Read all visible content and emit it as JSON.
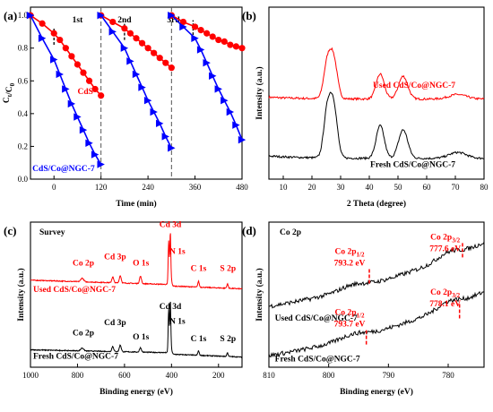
{
  "chart_data": [
    {
      "id": "a",
      "panel_label": "(a)",
      "type": "line",
      "xlabel": "Time (min)",
      "ylabel_main": "C",
      "ylabel_sub1": "t",
      "ylabel_mid": "/C",
      "ylabel_sub2": "0",
      "xlim": [
        -60,
        480
      ],
      "ylim": [
        0,
        1.05
      ],
      "xticks": [
        0,
        120,
        240,
        360,
        480
      ],
      "yticks": [
        0.0,
        0.2,
        0.4,
        0.6,
        0.8,
        1.0
      ],
      "cycle_labels": [
        {
          "text": "1st",
          "x": 60
        },
        {
          "text": "2nd",
          "x": 180
        },
        {
          "text": "3rd",
          "x": 305
        }
      ],
      "cycle_dividers": [
        120,
        300
      ],
      "light_on_markers": [
        {
          "x": 0,
          "y0": 0.82,
          "y1": 0.92
        },
        {
          "x": 180,
          "y0": 0.85,
          "y1": 0.95
        },
        {
          "x": 355,
          "y0": 0.88,
          "y1": 0.97
        }
      ],
      "series": [
        {
          "name": "CdS",
          "color": "#ff0000",
          "marker": "circle",
          "label_at": [
            100,
            0.52
          ],
          "segments": [
            {
              "x": [
                -60,
                -30,
                0,
                15,
                30,
                45,
                60,
                75,
                90,
                105,
                120
              ],
              "y": [
                1.0,
                0.95,
                0.89,
                0.85,
                0.8,
                0.75,
                0.7,
                0.65,
                0.6,
                0.55,
                0.51
              ]
            },
            {
              "x": [
                120,
                150,
                180,
                195,
                210,
                225,
                240,
                255,
                270,
                285,
                300
              ],
              "y": [
                1.0,
                0.96,
                0.92,
                0.89,
                0.86,
                0.83,
                0.8,
                0.77,
                0.74,
                0.71,
                0.68
              ]
            },
            {
              "x": [
                300,
                330,
                360,
                375,
                390,
                405,
                420,
                435,
                450,
                465,
                480
              ],
              "y": [
                1.0,
                0.96,
                0.93,
                0.91,
                0.89,
                0.87,
                0.85,
                0.84,
                0.82,
                0.81,
                0.8
              ]
            }
          ]
        },
        {
          "name": "CdS/Co@NGC-7",
          "color": "#0000ff",
          "marker": "triangle",
          "label_at": [
            -55,
            0.05
          ],
          "segments": [
            {
              "x": [
                -60,
                -30,
                0,
                15,
                30,
                45,
                60,
                75,
                90,
                105,
                120
              ],
              "y": [
                1.0,
                0.86,
                0.73,
                0.64,
                0.55,
                0.46,
                0.38,
                0.3,
                0.22,
                0.15,
                0.09
              ]
            },
            {
              "x": [
                120,
                150,
                180,
                195,
                210,
                225,
                240,
                255,
                270,
                285,
                300
              ],
              "y": [
                1.0,
                0.9,
                0.8,
                0.72,
                0.64,
                0.56,
                0.48,
                0.41,
                0.34,
                0.26,
                0.19
              ]
            },
            {
              "x": [
                300,
                330,
                360,
                375,
                390,
                405,
                420,
                435,
                450,
                465,
                480
              ],
              "y": [
                1.0,
                0.93,
                0.86,
                0.79,
                0.71,
                0.63,
                0.55,
                0.48,
                0.41,
                0.33,
                0.24
              ]
            }
          ]
        }
      ]
    },
    {
      "id": "b",
      "panel_label": "(b)",
      "type": "line",
      "xlabel": "2 Theta (degree)",
      "ylabel": "Intensity (a.u.)",
      "xlim": [
        5,
        80
      ],
      "xticks": [
        10,
        20,
        30,
        40,
        50,
        60,
        70,
        80
      ],
      "series": [
        {
          "name": "Used CdS/Co@NGC-7",
          "color": "#ff0000",
          "label_at": [
            70,
            0.53
          ],
          "offset": 0.45,
          "scale": 0.55,
          "peaks": [
            {
              "c": 26.6,
              "h": 1.0,
              "w": 1.6
            },
            {
              "c": 43.8,
              "h": 0.55,
              "w": 1.4
            },
            {
              "c": 51.8,
              "h": 0.5,
              "w": 1.6
            },
            {
              "c": 70.8,
              "h": 0.1,
              "w": 3.0
            },
            {
              "c": 24.8,
              "h": 0.25,
              "w": 1.0
            },
            {
              "c": 28.2,
              "h": 0.2,
              "w": 1.0
            }
          ]
        },
        {
          "name": "Fresh CdS/Co@NGC-7",
          "color": "#000000",
          "label_at": [
            70,
            0.07
          ],
          "offset": 0.1,
          "scale": 0.72,
          "peaks": [
            {
              "c": 26.6,
              "h": 1.0,
              "w": 1.6
            },
            {
              "c": 43.8,
              "h": 0.55,
              "w": 1.4
            },
            {
              "c": 51.8,
              "h": 0.48,
              "w": 1.6
            },
            {
              "c": 70.8,
              "h": 0.1,
              "w": 3.0
            },
            {
              "c": 24.8,
              "h": 0.25,
              "w": 1.0
            },
            {
              "c": 28.2,
              "h": 0.2,
              "w": 1.0
            }
          ]
        }
      ]
    },
    {
      "id": "c",
      "panel_label": "(c)",
      "type": "line",
      "subtitle": "Survey",
      "xlabel": "Binding energy (eV)",
      "ylabel": "Intensity (a.u.)",
      "xlim": [
        1000,
        100
      ],
      "xticks": [
        1000,
        800,
        600,
        400,
        200
      ],
      "series": [
        {
          "name": "Used CdS/Co@NGC-7",
          "color": "#ff0000",
          "label_at": [
            1000,
            0.52
          ],
          "base_left": 0.6,
          "base_right": 0.57,
          "step_at": 405,
          "base_after": 0.56,
          "peaks": [
            {
              "c": 405,
              "h": 0.36,
              "w": 2.2
            },
            {
              "c": 412,
              "h": 0.3,
              "w": 2.2
            },
            {
              "c": 780,
              "h": 0.025,
              "w": 6
            },
            {
              "c": 650,
              "h": 0.04,
              "w": 4
            },
            {
              "c": 618,
              "h": 0.05,
              "w": 4
            },
            {
              "c": 532,
              "h": 0.05,
              "w": 4
            },
            {
              "c": 285,
              "h": 0.04,
              "w": 3
            },
            {
              "c": 162,
              "h": 0.03,
              "w": 3
            },
            {
              "c": 400,
              "h": 0.03,
              "w": 3
            }
          ]
        },
        {
          "name": "Fresh CdS/Co@NGC-7",
          "color": "#000000",
          "label_at": [
            1000,
            0.06
          ],
          "base_left": 0.12,
          "base_right": 0.1,
          "step_at": 405,
          "base_after": 0.09,
          "peaks": [
            {
              "c": 405,
              "h": 0.36,
              "w": 2.2
            },
            {
              "c": 412,
              "h": 0.3,
              "w": 2.2
            },
            {
              "c": 780,
              "h": 0.02,
              "w": 6
            },
            {
              "c": 650,
              "h": 0.035,
              "w": 4
            },
            {
              "c": 618,
              "h": 0.045,
              "w": 4
            },
            {
              "c": 532,
              "h": 0.03,
              "w": 4
            },
            {
              "c": 285,
              "h": 0.03,
              "w": 3
            },
            {
              "c": 162,
              "h": 0.025,
              "w": 3
            },
            {
              "c": 400,
              "h": 0.03,
              "w": 3
            }
          ]
        }
      ],
      "annotations": [
        {
          "text": "Cd 3d",
          "x": 405,
          "y": 0.965,
          "color": "#ff0000"
        },
        {
          "text": "Co 2p",
          "x": 775,
          "y": 0.7,
          "color": "#ff0000"
        },
        {
          "text": "Cd 3p",
          "x": 640,
          "y": 0.745,
          "color": "#ff0000"
        },
        {
          "text": "O 1s",
          "x": 530,
          "y": 0.7,
          "color": "#ff0000"
        },
        {
          "text": "N 1s",
          "x": 375,
          "y": 0.78,
          "color": "#ff0000"
        },
        {
          "text": "C 1s",
          "x": 285,
          "y": 0.665,
          "color": "#ff0000"
        },
        {
          "text": "S 2p",
          "x": 160,
          "y": 0.665,
          "color": "#ff0000"
        },
        {
          "text": "Cd 3d",
          "x": 405,
          "y": 0.4,
          "color": "#000000"
        },
        {
          "text": "Co 2p",
          "x": 775,
          "y": 0.22,
          "color": "#000000"
        },
        {
          "text": "Cd 3p",
          "x": 640,
          "y": 0.29,
          "color": "#000000"
        },
        {
          "text": "O 1s",
          "x": 530,
          "y": 0.19,
          "color": "#000000"
        },
        {
          "text": "N 1s",
          "x": 375,
          "y": 0.3,
          "color": "#000000"
        },
        {
          "text": "C 1s",
          "x": 285,
          "y": 0.18,
          "color": "#000000"
        },
        {
          "text": "S 2p",
          "x": 160,
          "y": 0.18,
          "color": "#000000"
        }
      ]
    },
    {
      "id": "d",
      "panel_label": "(d)",
      "type": "line",
      "subtitle": "Co 2p",
      "xlabel": "Binding energy (eV)",
      "ylabel": "Intensity (a.u.)",
      "xlim": [
        810,
        774
      ],
      "xticks": [
        810,
        800,
        790,
        780
      ],
      "series": [
        {
          "name": "Used CdS/Co@NGC-7",
          "color": "#000000",
          "label_at": [
            809,
            0.32
          ],
          "y_start": 0.42,
          "y_end": 0.86
        },
        {
          "name": "Fresh CdS/Co@NGC-7",
          "color": "#000000",
          "label_at": [
            809,
            0.04
          ],
          "y_start": 0.08,
          "y_end": 0.52
        }
      ],
      "annotations": [
        {
          "main": "Co 2p",
          "sub": "1/2",
          "ev": "793.2 eV",
          "x": 796.5,
          "y": 0.78,
          "marker_x": 793.2,
          "marker_y": 0.62
        },
        {
          "main": "Co 2p",
          "sub": "3/2",
          "ev": "777.6 eV",
          "x": 780.5,
          "y": 0.88,
          "marker_x": 777.6,
          "marker_y": 0.8
        },
        {
          "main": "Co 2p",
          "sub": "1/2",
          "ev": "793.7 eV",
          "x": 796.5,
          "y": 0.36,
          "marker_x": 793.7,
          "marker_y": 0.2
        },
        {
          "main": "Co 2p",
          "sub": "3/2",
          "ev": "778.1 eV",
          "x": 780.5,
          "y": 0.5,
          "marker_x": 778.1,
          "marker_y": 0.38
        }
      ]
    }
  ]
}
